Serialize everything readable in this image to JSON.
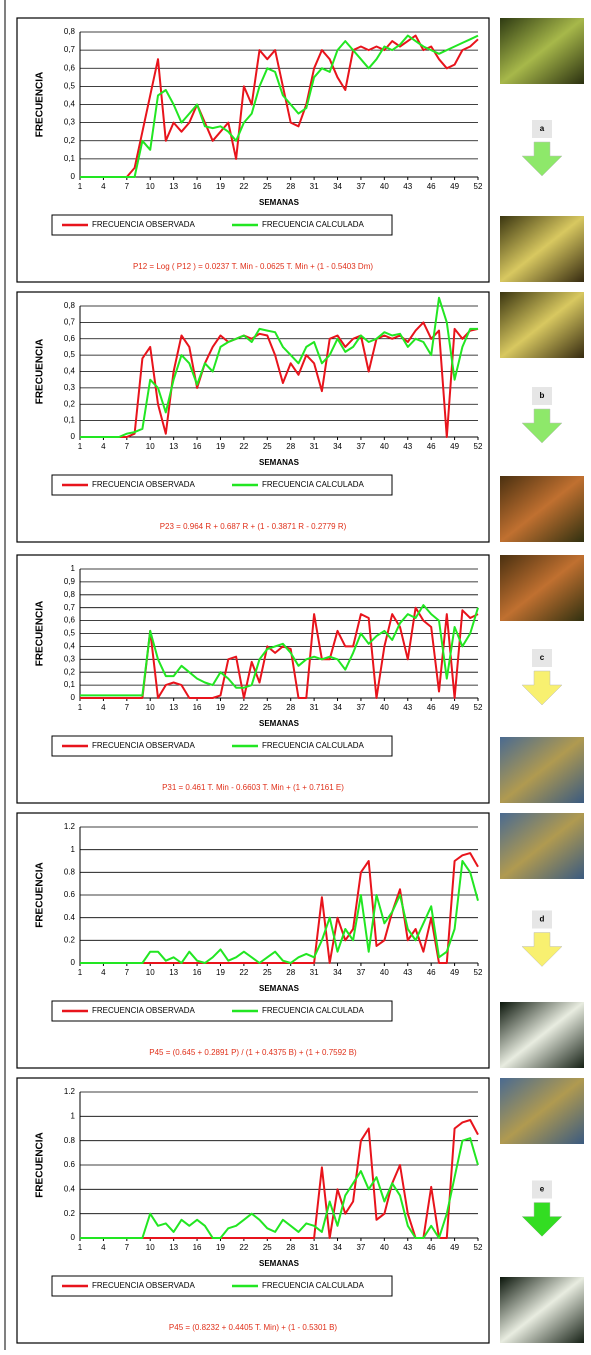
{
  "chart_data": [
    {
      "type": "line",
      "y_label": "FRECUENCIA",
      "x_label": "SEMANAS",
      "equation": "P12 = Log ( P12 ) = 0.0237 T. Min - 0.0625 T. Min + (1 - 0.5403 Dm)",
      "grid": true,
      "x": [
        1,
        2,
        3,
        4,
        5,
        6,
        7,
        8,
        9,
        10,
        11,
        12,
        13,
        14,
        15,
        16,
        17,
        18,
        19,
        20,
        21,
        22,
        23,
        24,
        25,
        26,
        27,
        28,
        29,
        30,
        31,
        32,
        33,
        34,
        35,
        36,
        37,
        38,
        39,
        40,
        41,
        42,
        43,
        44,
        45,
        46,
        47,
        48,
        49,
        50,
        51,
        52
      ],
      "xlim": [
        1,
        52
      ],
      "xticks": [
        1,
        4,
        7,
        10,
        13,
        16,
        19,
        22,
        25,
        28,
        31,
        34,
        37,
        40,
        43,
        46,
        49,
        52
      ],
      "ylim": [
        0,
        0.8
      ],
      "yticks": [
        0,
        {
          "value": 0.1,
          "label": "0,1"
        },
        {
          "value": 0.2,
          "label": "0,2"
        },
        {
          "value": 0.3,
          "label": "0,3"
        },
        {
          "value": 0.4,
          "label": "0,4"
        },
        {
          "value": 0.5,
          "label": "0,5"
        },
        {
          "value": 0.6,
          "label": "0,6"
        },
        {
          "value": 0.7,
          "label": "0,7"
        },
        {
          "value": 0.8,
          "label": "0,8"
        }
      ],
      "series": [
        {
          "name": "FRECUENCIA OBSERVADA",
          "color": "#e8141c",
          "values": [
            0,
            0,
            0,
            0,
            0,
            0,
            0,
            0.05,
            0.25,
            0.45,
            0.65,
            0.2,
            0.3,
            0.25,
            0.3,
            0.4,
            0.3,
            0.2,
            0.25,
            0.3,
            0.1,
            0.5,
            0.4,
            0.7,
            0.65,
            0.7,
            0.5,
            0.3,
            0.28,
            0.4,
            0.6,
            0.7,
            0.65,
            0.55,
            0.48,
            0.7,
            0.72,
            0.7,
            0.72,
            0.7,
            0.75,
            0.72,
            0.75,
            0.78,
            0.7,
            0.72,
            0.65,
            0.6,
            0.62,
            0.7,
            0.72,
            0.76
          ]
        },
        {
          "name": "FRECUENCIA CALCULADA",
          "color": "#22e622",
          "values": [
            0,
            0,
            0,
            0,
            0,
            0,
            0,
            0,
            0.2,
            0.15,
            0.45,
            0.48,
            0.4,
            0.3,
            0.35,
            0.4,
            0.28,
            0.27,
            0.28,
            0.25,
            0.2,
            0.3,
            0.35,
            0.5,
            0.6,
            0.58,
            0.45,
            0.4,
            0.35,
            0.38,
            0.55,
            0.6,
            0.58,
            0.7,
            0.75,
            0.7,
            0.65,
            0.6,
            0.65,
            0.72,
            0.7,
            0.73,
            0.78,
            0.75,
            0.72,
            0.7,
            0.68,
            0.7,
            0.72,
            0.74,
            0.76,
            0.78
          ]
        }
      ]
    },
    {
      "type": "line",
      "y_label": "FRECUENCIA",
      "x_label": "SEMANAS",
      "equation": "P23 = 0.964 R + 0.687 R + (1 - 0.3871 R - 0.2779 R)",
      "grid": true,
      "x": [
        1,
        2,
        3,
        4,
        5,
        6,
        7,
        8,
        9,
        10,
        11,
        12,
        13,
        14,
        15,
        16,
        17,
        18,
        19,
        20,
        21,
        22,
        23,
        24,
        25,
        26,
        27,
        28,
        29,
        30,
        31,
        32,
        33,
        34,
        35,
        36,
        37,
        38,
        39,
        40,
        41,
        42,
        43,
        44,
        45,
        46,
        47,
        48,
        49,
        50,
        51,
        52
      ],
      "xlim": [
        1,
        52
      ],
      "xticks": [
        1,
        4,
        7,
        10,
        13,
        16,
        19,
        22,
        25,
        28,
        31,
        34,
        37,
        40,
        43,
        46,
        49,
        52
      ],
      "ylim": [
        0,
        0.8
      ],
      "yticks": [
        0,
        {
          "value": 0.1,
          "label": "0,1"
        },
        {
          "value": 0.2,
          "label": "0,2"
        },
        {
          "value": 0.3,
          "label": "0,3"
        },
        {
          "value": 0.4,
          "label": "0,4"
        },
        {
          "value": 0.5,
          "label": "0,5"
        },
        {
          "value": 0.6,
          "label": "0,6"
        },
        {
          "value": 0.7,
          "label": "0,7"
        },
        {
          "value": 0.8,
          "label": "0,8"
        }
      ],
      "series": [
        {
          "name": "FRECUENCIA OBSERVADA",
          "color": "#e8141c",
          "values": [
            0,
            0,
            0,
            0,
            0,
            0,
            0,
            0.02,
            0.48,
            0.55,
            0.2,
            0.02,
            0.4,
            0.62,
            0.55,
            0.3,
            0.45,
            0.55,
            0.62,
            0.58,
            0.6,
            0.62,
            0.6,
            0.63,
            0.62,
            0.5,
            0.33,
            0.45,
            0.38,
            0.5,
            0.45,
            0.28,
            0.6,
            0.62,
            0.55,
            0.6,
            0.62,
            0.4,
            0.6,
            0.62,
            0.6,
            0.62,
            0.58,
            0.65,
            0.7,
            0.6,
            0.65,
            0,
            0.66,
            0.6,
            0.65,
            0.66
          ]
        },
        {
          "name": "FRECUENCIA CALCULADA",
          "color": "#22e622",
          "values": [
            0,
            0,
            0,
            0,
            0,
            0,
            0.02,
            0.03,
            0.05,
            0.35,
            0.3,
            0.15,
            0.35,
            0.5,
            0.45,
            0.32,
            0.45,
            0.4,
            0.55,
            0.58,
            0.6,
            0.62,
            0.58,
            0.66,
            0.65,
            0.64,
            0.55,
            0.5,
            0.45,
            0.55,
            0.58,
            0.45,
            0.5,
            0.6,
            0.52,
            0.55,
            0.62,
            0.58,
            0.6,
            0.64,
            0.62,
            0.63,
            0.55,
            0.6,
            0.58,
            0.5,
            0.85,
            0.7,
            0.35,
            0.55,
            0.66,
            0.66
          ]
        }
      ]
    },
    {
      "type": "line",
      "y_label": "FRECUENCIA",
      "x_label": "SEMANAS",
      "equation": "P31 = 0.461 T. Min - 0.6603 T. Min + (1 + 0.7161 E)",
      "grid": true,
      "x": [
        1,
        2,
        3,
        4,
        5,
        6,
        7,
        8,
        9,
        10,
        11,
        12,
        13,
        14,
        15,
        16,
        17,
        18,
        19,
        20,
        21,
        22,
        23,
        24,
        25,
        26,
        27,
        28,
        29,
        30,
        31,
        32,
        33,
        34,
        35,
        36,
        37,
        38,
        39,
        40,
        41,
        42,
        43,
        44,
        45,
        46,
        47,
        48,
        49,
        50,
        51,
        52
      ],
      "xlim": [
        1,
        52
      ],
      "xticks": [
        1,
        4,
        7,
        10,
        13,
        16,
        19,
        22,
        25,
        28,
        31,
        34,
        37,
        40,
        43,
        46,
        49,
        52
      ],
      "ylim": [
        0,
        1
      ],
      "yticks": [
        0,
        {
          "value": 0.1,
          "label": "0,1"
        },
        {
          "value": 0.2,
          "label": "0,2"
        },
        {
          "value": 0.3,
          "label": "0,3"
        },
        {
          "value": 0.4,
          "label": "0,4"
        },
        {
          "value": 0.5,
          "label": "0,5"
        },
        {
          "value": 0.6,
          "label": "0,6"
        },
        {
          "value": 0.7,
          "label": "0,7"
        },
        {
          "value": 0.8,
          "label": "0,8"
        },
        {
          "value": 0.9,
          "label": "0,9"
        },
        1
      ],
      "series": [
        {
          "name": "FRECUENCIA OBSERVADA",
          "color": "#e8141c",
          "values": [
            0,
            0,
            0,
            0,
            0,
            0,
            0,
            0,
            0,
            0.52,
            0,
            0.1,
            0.12,
            0.1,
            0,
            0,
            0,
            0,
            0.02,
            0.3,
            0.32,
            0,
            0.28,
            0.12,
            0.4,
            0.35,
            0.4,
            0.38,
            0,
            0,
            0.65,
            0.3,
            0.3,
            0.52,
            0.4,
            0.4,
            0.65,
            0.62,
            0,
            0.4,
            0.65,
            0.55,
            0.3,
            0.7,
            0.6,
            0.55,
            0.05,
            0.65,
            0,
            0.68,
            0.62,
            0.65
          ]
        },
        {
          "name": "FRECUENCIA CALCULADA",
          "color": "#22e622",
          "values": [
            0.02,
            0.02,
            0.02,
            0.02,
            0.02,
            0.02,
            0.02,
            0.02,
            0.02,
            0.52,
            0.3,
            0.17,
            0.17,
            0.25,
            0.2,
            0.15,
            0.12,
            0.1,
            0.2,
            0.15,
            0.08,
            0.08,
            0.1,
            0.3,
            0.38,
            0.4,
            0.42,
            0.35,
            0.25,
            0.3,
            0.32,
            0.3,
            0.32,
            0.3,
            0.22,
            0.35,
            0.5,
            0.42,
            0.48,
            0.52,
            0.45,
            0.58,
            0.65,
            0.62,
            0.72,
            0.65,
            0.6,
            0.15,
            0.55,
            0.4,
            0.5,
            0.7
          ]
        }
      ]
    },
    {
      "type": "line",
      "y_label": "FRECUENCIA",
      "x_label": "SEMANAS",
      "equation": "P45 = (0.645 + 0.2891 P) / (1 + 0.4375 B) + (1 + 0.7592 B)",
      "grid": true,
      "x": [
        1,
        2,
        3,
        4,
        5,
        6,
        7,
        8,
        9,
        10,
        11,
        12,
        13,
        14,
        15,
        16,
        17,
        18,
        19,
        20,
        21,
        22,
        23,
        24,
        25,
        26,
        27,
        28,
        29,
        30,
        31,
        32,
        33,
        34,
        35,
        36,
        37,
        38,
        39,
        40,
        41,
        42,
        43,
        44,
        45,
        46,
        47,
        48,
        49,
        50,
        51,
        52
      ],
      "xlim": [
        1,
        52
      ],
      "xticks": [
        1,
        4,
        7,
        10,
        13,
        16,
        19,
        22,
        25,
        28,
        31,
        34,
        37,
        40,
        43,
        46,
        49,
        52
      ],
      "ylim": [
        0,
        1.2
      ],
      "yticks": [
        0,
        0.2,
        0.4,
        0.6,
        0.8,
        1,
        1.2
      ],
      "series": [
        {
          "name": "FRECUENCIA OBSERVADA",
          "color": "#e8141c",
          "values": [
            0,
            0,
            0,
            0,
            0,
            0,
            0,
            0,
            0,
            0,
            0,
            0,
            0,
            0,
            0,
            0,
            0,
            0,
            0,
            0,
            0,
            0,
            0,
            0,
            0,
            0,
            0,
            0,
            0,
            0,
            0,
            0.58,
            0,
            0.4,
            0.2,
            0.3,
            0.8,
            0.9,
            0.15,
            0.2,
            0.45,
            0.65,
            0.2,
            0.3,
            0.1,
            0.4,
            0,
            0,
            0.9,
            0.95,
            0.97,
            0.85
          ]
        },
        {
          "name": "FRECUENCIA CALCULADA",
          "color": "#22e622",
          "values": [
            0,
            0,
            0,
            0,
            0,
            0,
            0,
            0,
            0,
            0.1,
            0.1,
            0.02,
            0.05,
            0,
            0.1,
            0.02,
            0,
            0.05,
            0.12,
            0.02,
            0.05,
            0.1,
            0.05,
            0,
            0.05,
            0.1,
            0.02,
            0,
            0.05,
            0.08,
            0.05,
            0.2,
            0.4,
            0.1,
            0.3,
            0.2,
            0.6,
            0.1,
            0.6,
            0.35,
            0.45,
            0.6,
            0.3,
            0.2,
            0.35,
            0.5,
            0.05,
            0.1,
            0.3,
            0.9,
            0.8,
            0.55
          ]
        }
      ]
    },
    {
      "type": "line",
      "y_label": "FRECUENCIA",
      "x_label": "SEMANAS",
      "equation": "P45 = (0.8232 + 0.4405 T. Min) + (1 - 0.5301 B)",
      "grid": true,
      "x": [
        1,
        2,
        3,
        4,
        5,
        6,
        7,
        8,
        9,
        10,
        11,
        12,
        13,
        14,
        15,
        16,
        17,
        18,
        19,
        20,
        21,
        22,
        23,
        24,
        25,
        26,
        27,
        28,
        29,
        30,
        31,
        32,
        33,
        34,
        35,
        36,
        37,
        38,
        39,
        40,
        41,
        42,
        43,
        44,
        45,
        46,
        47,
        48,
        49,
        50,
        51,
        52
      ],
      "xlim": [
        1,
        52
      ],
      "xticks": [
        1,
        4,
        7,
        10,
        13,
        16,
        19,
        22,
        25,
        28,
        31,
        34,
        37,
        40,
        43,
        46,
        49,
        52
      ],
      "ylim": [
        0,
        1.2
      ],
      "yticks": [
        0,
        0.2,
        0.4,
        0.6,
        0.8,
        1,
        1.2
      ],
      "series": [
        {
          "name": "FRECUENCIA OBSERVADA",
          "color": "#e8141c",
          "values": [
            0,
            0,
            0,
            0,
            0,
            0,
            0,
            0,
            0,
            0,
            0,
            0,
            0,
            0,
            0,
            0,
            0,
            0,
            0,
            0,
            0,
            0,
            0,
            0,
            0,
            0,
            0,
            0,
            0,
            0,
            0,
            0.58,
            0,
            0.4,
            0.2,
            0.3,
            0.8,
            0.9,
            0.15,
            0.2,
            0.45,
            0.6,
            0.2,
            0,
            0,
            0.42,
            0,
            0,
            0.9,
            0.95,
            0.97,
            0.85
          ]
        },
        {
          "name": "FRECUENCIA CALCULADA",
          "color": "#22e622",
          "values": [
            0,
            0,
            0,
            0,
            0,
            0,
            0,
            0,
            0,
            0.2,
            0.1,
            0.12,
            0.05,
            0.15,
            0.1,
            0.15,
            0.1,
            0,
            0,
            0.08,
            0.1,
            0.15,
            0.2,
            0.15,
            0.08,
            0.05,
            0.15,
            0.1,
            0.05,
            0.12,
            0.1,
            0.05,
            0.3,
            0.1,
            0.35,
            0.45,
            0.55,
            0.4,
            0.5,
            0.3,
            0.45,
            0.35,
            0.1,
            0,
            0,
            0.1,
            0,
            0.2,
            0.5,
            0.8,
            0.82,
            0.6
          ]
        }
      ]
    }
  ],
  "stages": [
    "a",
    "b",
    "c",
    "d",
    "e"
  ]
}
